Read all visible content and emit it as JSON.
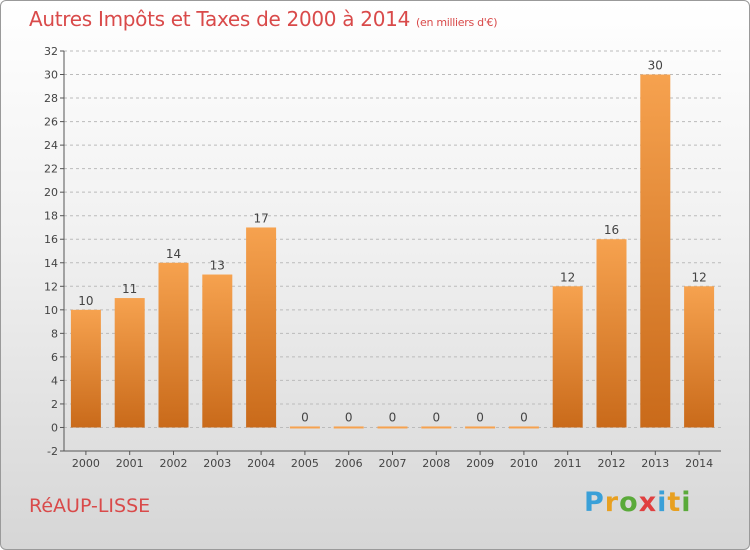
{
  "header": {
    "title": "Autres Impôts et Taxes de 2000 à 2014",
    "unit": "(en milliers d'€)"
  },
  "footer": {
    "place": "RéAUP-LISSE",
    "brand": {
      "text": "Proxiti",
      "letters": [
        {
          "char": "P",
          "color": "#3aa0d8"
        },
        {
          "char": "r",
          "color": "#e8a020"
        },
        {
          "char": "o",
          "color": "#5aaa3a"
        },
        {
          "char": "x",
          "color": "#e04040"
        },
        {
          "char": "i",
          "color": "#3aa0d8"
        },
        {
          "char": "t",
          "color": "#e8a020"
        },
        {
          "char": "i",
          "color": "#5aaa3a"
        }
      ]
    }
  },
  "colors": {
    "bar_top": "#f6a24f",
    "bar_bottom": "#c96a1a",
    "title": "#d94a4a",
    "axis": "#555555",
    "grid": "#bbbbbb"
  },
  "chart_data": {
    "type": "bar",
    "title": "Autres Impôts et Taxes de 2000 à 2014",
    "subtitle": "(en milliers d'€)",
    "xlabel": "",
    "ylabel": "",
    "categories": [
      "2000",
      "2001",
      "2002",
      "2003",
      "2004",
      "2005",
      "2006",
      "2007",
      "2008",
      "2009",
      "2010",
      "2011",
      "2012",
      "2013",
      "2014"
    ],
    "values": [
      10,
      11,
      14,
      13,
      17,
      0,
      0,
      0,
      0,
      0,
      0,
      12,
      16,
      30,
      12
    ],
    "ylim": [
      -2,
      32
    ],
    "yticks": [
      -2,
      0,
      2,
      4,
      6,
      8,
      10,
      12,
      14,
      16,
      18,
      20,
      22,
      24,
      26,
      28,
      30,
      32
    ],
    "grid": "horizontal dashed",
    "legend": "none"
  }
}
